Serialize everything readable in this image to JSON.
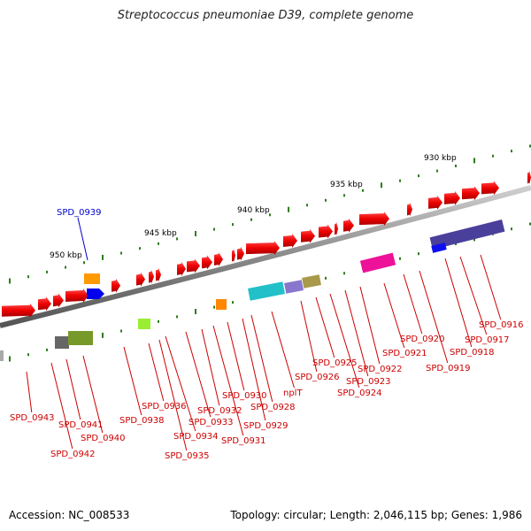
{
  "title": "Streptococcus pneumoniae D39, complete genome",
  "footer": {
    "accession": "Accession: NC_008533",
    "summary": "Topology: circular; Length: 2,046,115 bp; Genes: 1,986"
  },
  "colors": {
    "backbone": "#8a8a8a",
    "tick": "#2e7d1e",
    "label": "#cc0000",
    "highlight": "#0000cc"
  },
  "kbp_labels": [
    "930 kbp",
    "935 kbp",
    "940 kbp",
    "945 kbp",
    "950 kbp"
  ],
  "highlighted_gene": "SPD_0939",
  "gene_labels": [
    "SPD_0916",
    "SPD_0917",
    "SPD_0918",
    "SPD_0919",
    "SPD_0920",
    "SPD_0921",
    "SPD_0922",
    "SPD_0923",
    "SPD_0924",
    "SPD_0925",
    "SPD_0926",
    "nplT",
    "SPD_0928",
    "SPD_0929",
    "SPD_0930",
    "SPD_0931",
    "SPD_0932",
    "SPD_0933",
    "SPD_0934",
    "SPD_0935",
    "SPD_0936",
    "SPD_0938",
    "SPD_0940",
    "SPD_0941",
    "SPD_0942",
    "SPD_0943"
  ]
}
